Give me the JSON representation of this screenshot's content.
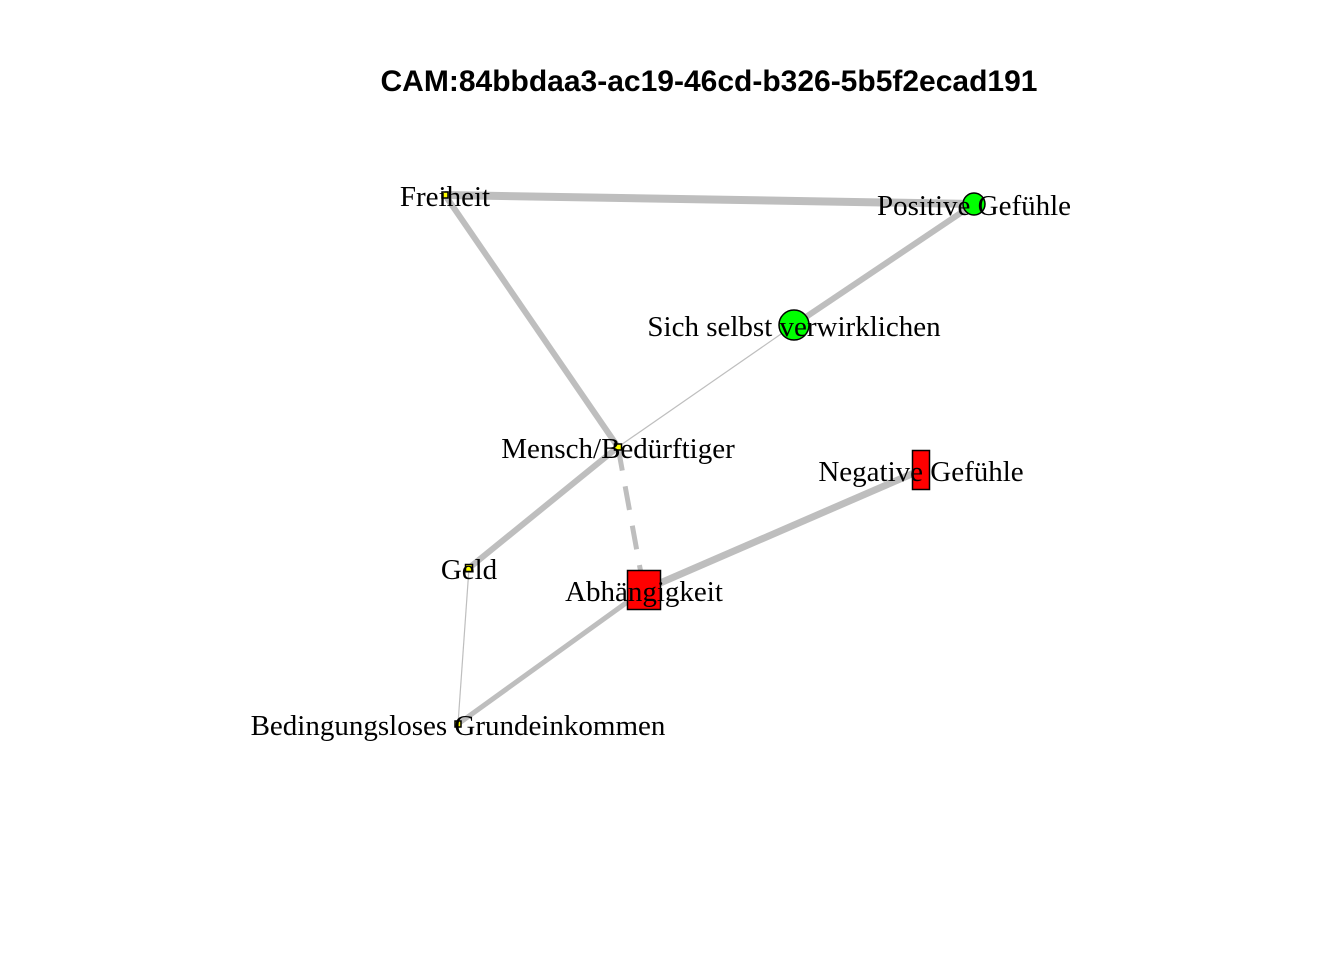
{
  "title": "CAM:84bbdaa3-ac19-46cd-b326-5b5f2ecad191",
  "nodes": [
    {
      "id": "freiheit",
      "label": "Freiheit",
      "shape": "square",
      "color": "#ffff00"
    },
    {
      "id": "positive",
      "label": "Positive Gefühle",
      "shape": "circle",
      "color": "#00ff00"
    },
    {
      "id": "selbst",
      "label": "Sich selbst verwirklichen",
      "shape": "circle",
      "color": "#00ff00"
    },
    {
      "id": "mensch",
      "label": "Mensch/Bedürftiger",
      "shape": "square",
      "color": "#ffff00"
    },
    {
      "id": "negative",
      "label": "Negative Gefühle",
      "shape": "rect",
      "color": "#ff0000"
    },
    {
      "id": "geld",
      "label": "Geld",
      "shape": "square",
      "color": "#ffff00"
    },
    {
      "id": "abhaengigkeit",
      "label": "Abhängigkeit",
      "shape": "square",
      "color": "#ff0000"
    },
    {
      "id": "bge",
      "label": "Bedingungsloses Grundeinkommen",
      "shape": "square",
      "color": "#ffff00"
    }
  ],
  "edges": [
    {
      "from": "freiheit",
      "to": "positive",
      "style": "solid"
    },
    {
      "from": "freiheit",
      "to": "mensch",
      "style": "solid"
    },
    {
      "from": "positive",
      "to": "selbst",
      "style": "solid"
    },
    {
      "from": "selbst",
      "to": "mensch",
      "style": "solid"
    },
    {
      "from": "mensch",
      "to": "geld",
      "style": "solid"
    },
    {
      "from": "mensch",
      "to": "abhaengigkeit",
      "style": "dashed"
    },
    {
      "from": "abhaengigkeit",
      "to": "negative",
      "style": "solid"
    },
    {
      "from": "abhaengigkeit",
      "to": "bge",
      "style": "solid"
    },
    {
      "from": "geld",
      "to": "bge",
      "style": "solid"
    }
  ],
  "colors": {
    "edge": "#bebebe",
    "node_border": "#000000"
  }
}
